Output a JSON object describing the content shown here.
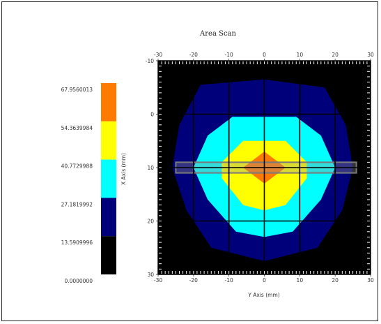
{
  "chart_data": {
    "type": "heatmap",
    "title": "Area Scan",
    "xlabel": "Y Axis (mm)",
    "ylabel": "X Axis (mm)",
    "xlim": [
      -30,
      30
    ],
    "ylim": [
      -10,
      30
    ],
    "x_ticks": [
      "-30",
      "-20",
      "-10",
      "0",
      "10",
      "20",
      "30"
    ],
    "y_ticks": [
      "-10",
      "0",
      "10",
      "20",
      "30"
    ],
    "grid": true,
    "legend": "left",
    "colorbar": {
      "labels": [
        "67.9560013",
        "54.3639984",
        "40.7729988",
        "27.1819992",
        "13.5909996",
        "0.0000000"
      ],
      "colors": [
        "#ff7a00",
        "#ffff00",
        "#00ffff",
        "#00007a",
        "#000000"
      ]
    },
    "levels": [
      {
        "level": 1,
        "color": "#00007a",
        "polygon": [
          [
            -18,
            -5.5
          ],
          [
            0,
            -6.5
          ],
          [
            17,
            -5
          ],
          [
            23,
            2
          ],
          [
            25,
            10
          ],
          [
            22,
            18
          ],
          [
            15,
            25
          ],
          [
            0,
            27.5
          ],
          [
            -15,
            25
          ],
          [
            -22,
            18
          ],
          [
            -26,
            10
          ],
          [
            -24,
            2
          ]
        ]
      },
      {
        "level": 2,
        "color": "#00ffff",
        "polygon": [
          [
            -9,
            0.5
          ],
          [
            9,
            0.5
          ],
          [
            16,
            4
          ],
          [
            20,
            10
          ],
          [
            16,
            16
          ],
          [
            8,
            22
          ],
          [
            0,
            23
          ],
          [
            -8,
            22
          ],
          [
            -16,
            16
          ],
          [
            -20,
            10
          ],
          [
            -16,
            4
          ]
        ]
      },
      {
        "level": 3,
        "color": "#ffff00",
        "polygon": [
          [
            -6,
            5
          ],
          [
            6,
            5
          ],
          [
            12,
            9
          ],
          [
            12,
            12
          ],
          [
            6,
            17
          ],
          [
            0,
            18
          ],
          [
            -6,
            17
          ],
          [
            -12,
            12
          ],
          [
            -12,
            9
          ]
        ]
      },
      {
        "level": 4,
        "color": "#ff7a00",
        "polygon": [
          [
            0,
            7
          ],
          [
            6,
            10
          ],
          [
            0,
            13
          ],
          [
            -6,
            10
          ]
        ]
      }
    ],
    "probe_bar": {
      "x": [
        -25,
        26
      ],
      "y": [
        9,
        11
      ]
    }
  }
}
